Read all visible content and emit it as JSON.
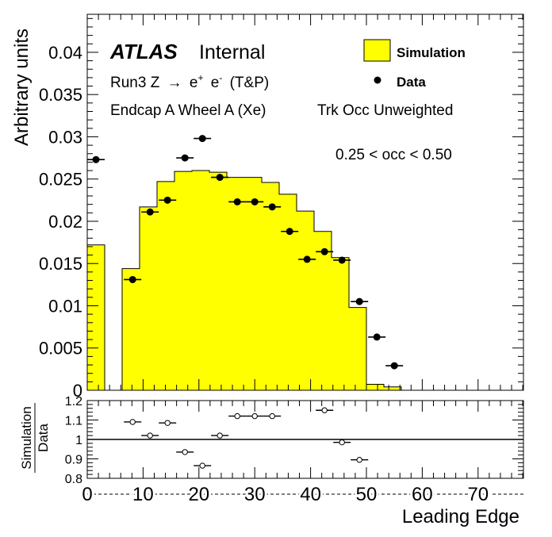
{
  "colors": {
    "hist_fill": "#ffff00",
    "data_marker": "#000000",
    "ratio_marker_fill": "#ffffff",
    "frame": "#000000"
  },
  "labels": {
    "atlas": "ATLAS",
    "internal": "Internal",
    "process_prefix": "Run3 Z",
    "process_arrow": "→",
    "process_e1": "e",
    "process_sup1": "+",
    "process_e2": "e",
    "process_sup2": "-",
    "process_suffix": "(T&P)",
    "region": "Endcap A Wheel A (Xe)",
    "weighting": "Trk Occ Unweighted",
    "occ_range": "0.25 < occ < 0.50",
    "legend_sim": "Simulation",
    "legend_data": "Data",
    "ylabel_main": "Arbitrary units",
    "ylabel_ratio_num": "Simulation",
    "ylabel_ratio_den": "Data",
    "xlabel": "Leading Edge"
  },
  "chart_data": [
    {
      "type": "bar",
      "panel": "main",
      "xlabel": "Leading Edge",
      "ylabel": "Arbitrary units",
      "xlim": [
        0,
        78.125
      ],
      "ylim": [
        0,
        0.0445
      ],
      "x_ticks": [
        "0",
        "10",
        "20",
        "30",
        "40",
        "50",
        "60",
        "70"
      ],
      "x_tick_values": [
        0,
        10,
        20,
        30,
        40,
        50,
        60,
        70
      ],
      "y_ticks": [
        "0",
        "0.005",
        "0.01",
        "0.015",
        "0.02",
        "0.025",
        "0.03",
        "0.035",
        "0.04"
      ],
      "y_tick_values": [
        0,
        0.005,
        0.01,
        0.015,
        0.02,
        0.025,
        0.03,
        0.035,
        0.04
      ],
      "legend_position": "top-right",
      "series": [
        {
          "name": "Simulation",
          "style": "filled-histogram",
          "bin_edges": [
            0,
            3.125,
            6.25,
            9.375,
            12.5,
            15.625,
            18.75,
            21.875,
            25,
            28.125,
            31.25,
            34.375,
            37.5,
            40.625,
            43.75,
            46.875,
            50,
            53.125,
            56.25,
            59.375,
            62.5,
            65.625,
            68.75,
            71.875,
            75,
            78.125
          ],
          "values": [
            0.0172,
            0,
            0.0144,
            0.0217,
            0.0247,
            0.0259,
            0.026,
            0.0258,
            0.0252,
            0.0252,
            0.0246,
            0.0232,
            0.0212,
            0.0188,
            0.0157,
            0.0098,
            0.0007,
            0.0004,
            0,
            0,
            0,
            0,
            0,
            0,
            0
          ]
        },
        {
          "name": "Data",
          "style": "points",
          "x": [
            1.5625,
            8.125,
            11.25,
            14.375,
            17.5,
            20.625,
            23.75,
            26.875,
            30,
            33.125,
            36.25,
            39.375,
            42.5,
            45.625,
            48.75,
            51.875,
            55
          ],
          "y": [
            0.0273,
            0.0131,
            0.0211,
            0.0225,
            0.0275,
            0.0298,
            0.0252,
            0.0223,
            0.0223,
            0.0217,
            0.0188,
            0.0155,
            0.0164,
            0.0154,
            0.0105,
            0.0063,
            0.0029
          ],
          "xerr": 1.5625
        }
      ]
    },
    {
      "type": "scatter",
      "panel": "ratio",
      "ylabel": "Simulation / Data",
      "xlim": [
        0,
        78.125
      ],
      "ylim": [
        0.8,
        1.2
      ],
      "reference_line": 1,
      "y_ticks": [
        "0.8",
        "0.9",
        "1",
        "1.1",
        "1.2"
      ],
      "y_tick_values": [
        0.8,
        0.9,
        1,
        1.1,
        1.2
      ],
      "x": [
        8.125,
        11.25,
        14.375,
        17.5,
        20.625,
        23.75,
        26.875,
        30,
        33.125,
        42.5,
        45.625,
        48.75
      ],
      "y": [
        1.09,
        1.02,
        1.085,
        0.935,
        0.865,
        1.02,
        1.12,
        1.12,
        1.12,
        1.15,
        0.985,
        0.895
      ],
      "xerr": 1.5625
    }
  ]
}
